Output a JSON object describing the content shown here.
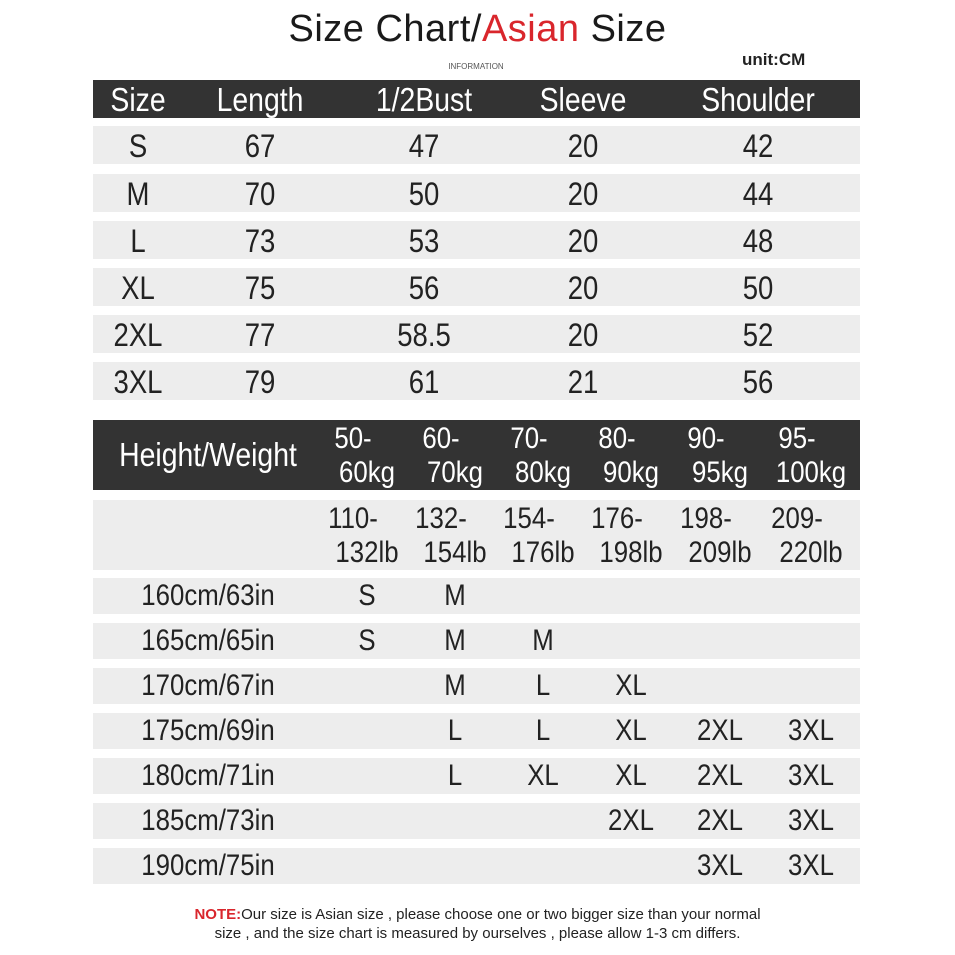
{
  "title": {
    "prefix": "Size Chart/",
    "accent": "Asian",
    "suffix": " Size",
    "accent_color": "#d9262c"
  },
  "unit": "unit:CM",
  "information": "INFORMATION",
  "size_table": {
    "headers": [
      "Size",
      "Length",
      "1/2Bust",
      "Sleeve",
      "Shoulder"
    ],
    "rows": [
      [
        "S",
        "67",
        "47",
        "20",
        "42"
      ],
      [
        "M",
        "70",
        "50",
        "20",
        "44"
      ],
      [
        "L",
        "73",
        "53",
        "20",
        "48"
      ],
      [
        "XL",
        "75",
        "56",
        "20",
        "50"
      ],
      [
        "2XL",
        "77",
        "58.5",
        "20",
        "52"
      ],
      [
        "3XL",
        "79",
        "61",
        "21",
        "56"
      ]
    ]
  },
  "fit_table": {
    "corner": "Height/Weight",
    "kg_headers": [
      [
        "50-",
        "60kg"
      ],
      [
        "60-",
        "70kg"
      ],
      [
        "70-",
        "80kg"
      ],
      [
        "80-",
        "90kg"
      ],
      [
        "90-",
        "95kg"
      ],
      [
        "95-",
        "100kg"
      ]
    ],
    "lb_headers": [
      [
        "110-",
        "132lb"
      ],
      [
        "132-",
        "154lb"
      ],
      [
        "154-",
        "176lb"
      ],
      [
        "176-",
        "198lb"
      ],
      [
        "198-",
        "209lb"
      ],
      [
        "209-",
        "220lb"
      ]
    ],
    "rows": [
      {
        "height": "160cm/63in",
        "sizes": [
          "S",
          "M",
          "",
          "",
          "",
          ""
        ]
      },
      {
        "height": "165cm/65in",
        "sizes": [
          "S",
          "M",
          "M",
          "",
          "",
          ""
        ]
      },
      {
        "height": "170cm/67in",
        "sizes": [
          "",
          "M",
          "L",
          "XL",
          "",
          ""
        ]
      },
      {
        "height": "175cm/69in",
        "sizes": [
          "",
          "L",
          "L",
          "XL",
          "2XL",
          "3XL"
        ]
      },
      {
        "height": "180cm/71in",
        "sizes": [
          "",
          "L",
          "XL",
          "XL",
          "2XL",
          "3XL"
        ]
      },
      {
        "height": "185cm/73in",
        "sizes": [
          "",
          "",
          "",
          "2XL",
          "2XL",
          "3XL"
        ]
      },
      {
        "height": "190cm/75in",
        "sizes": [
          "",
          "",
          "",
          "",
          "3XL",
          "3XL"
        ]
      }
    ]
  },
  "note": {
    "label": "NOTE:",
    "line1": "Our size is Asian size , please choose one or two bigger size than your normal",
    "line2": "size , and the size chart is measured by ourselves , please allow 1-3 cm differs."
  },
  "colors": {
    "header_bg": "#333333",
    "row_bg": "#ededed",
    "note_label": "#d9262c"
  }
}
